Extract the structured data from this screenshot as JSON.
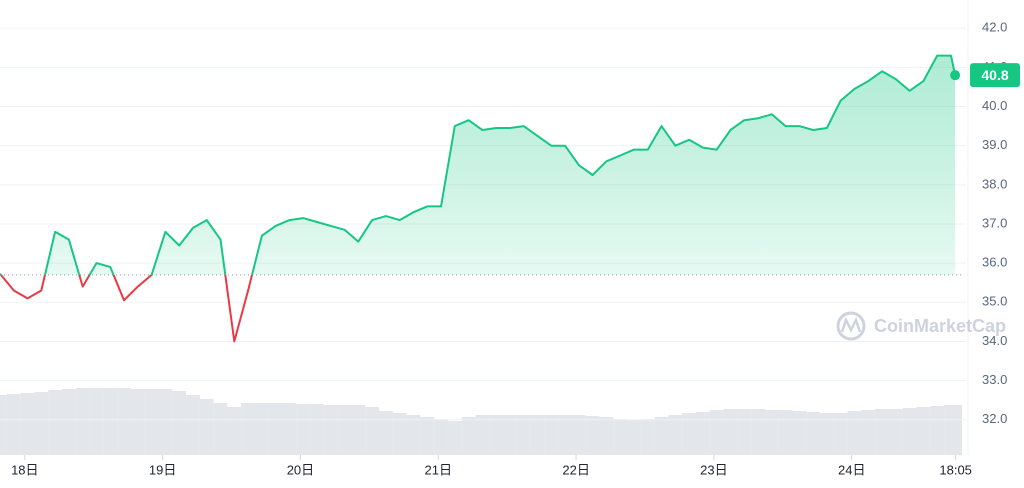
{
  "chart_data": {
    "type": "line",
    "x": [
      17.82,
      17.92,
      18.02,
      18.12,
      18.22,
      18.32,
      18.42,
      18.52,
      18.62,
      18.72,
      18.82,
      18.92,
      19.02,
      19.12,
      19.22,
      19.32,
      19.42,
      19.52,
      19.62,
      19.72,
      19.82,
      19.92,
      20.02,
      20.12,
      20.22,
      20.32,
      20.42,
      20.52,
      20.62,
      20.72,
      20.82,
      20.92,
      21.02,
      21.12,
      21.22,
      21.32,
      21.42,
      21.52,
      21.62,
      21.72,
      21.82,
      21.92,
      22.02,
      22.12,
      22.22,
      22.32,
      22.42,
      22.52,
      22.62,
      22.72,
      22.82,
      22.92,
      23.02,
      23.12,
      23.22,
      23.32,
      23.42,
      23.52,
      23.62,
      23.72,
      23.82,
      23.92,
      24.02,
      24.12,
      24.22,
      24.32,
      24.42,
      24.52,
      24.62,
      24.72,
      24.75
    ],
    "values": [
      35.73,
      35.3,
      35.1,
      35.3,
      36.8,
      36.6,
      35.4,
      36.0,
      35.9,
      35.05,
      35.4,
      35.7,
      36.8,
      36.45,
      36.9,
      37.1,
      36.6,
      34.0,
      35.3,
      36.7,
      36.95,
      37.1,
      37.15,
      37.05,
      36.95,
      36.85,
      36.55,
      37.1,
      37.2,
      37.1,
      37.3,
      37.45,
      37.45,
      39.5,
      39.65,
      39.4,
      39.45,
      39.45,
      39.5,
      39.25,
      39.0,
      39.0,
      38.5,
      38.25,
      38.6,
      38.75,
      38.9,
      38.9,
      39.5,
      39.0,
      39.15,
      38.95,
      38.9,
      39.4,
      39.65,
      39.7,
      39.8,
      39.5,
      39.5,
      39.4,
      39.45,
      40.15,
      40.45,
      40.65,
      40.9,
      40.7,
      40.4,
      40.65,
      41.3,
      41.3,
      40.8
    ],
    "last_label": "40.8",
    "volume": [
      60,
      61,
      62,
      63,
      65,
      66,
      67,
      67,
      67,
      67,
      66,
      66,
      66,
      64,
      60,
      56,
      52,
      48,
      52,
      52,
      52,
      52,
      51,
      51,
      50,
      50,
      50,
      48,
      44,
      42,
      40,
      38,
      36,
      34,
      38,
      40,
      40,
      40,
      40,
      40,
      40,
      40,
      40,
      39,
      38,
      36,
      35,
      36,
      38,
      40,
      42,
      43,
      45,
      46,
      46,
      46,
      45,
      45,
      44,
      43,
      42,
      42,
      44,
      45,
      46,
      46,
      47,
      48,
      49,
      50,
      50
    ],
    "baseline": 35.7,
    "up_color": "#16c784",
    "down_color": "#ea3943",
    "volume_color": "#e3e6ea",
    "xlim": [
      17.82,
      24.8
    ],
    "ylim": [
      31.1,
      42.72
    ],
    "xticks": [
      {
        "value": 18,
        "label": "18日"
      },
      {
        "value": 19,
        "label": "19日"
      },
      {
        "value": 20,
        "label": "20日"
      },
      {
        "value": 21,
        "label": "21日"
      },
      {
        "value": 22,
        "label": "22日"
      },
      {
        "value": 23,
        "label": "23日"
      },
      {
        "value": 24,
        "label": "24日"
      },
      {
        "value": 24.754,
        "label": "18:05"
      }
    ],
    "yticks": [
      {
        "value": 32,
        "label": "32.0"
      },
      {
        "value": 33,
        "label": "33.0"
      },
      {
        "value": 34,
        "label": "34.0"
      },
      {
        "value": 35,
        "label": "35.0"
      },
      {
        "value": 36,
        "label": "36.0"
      },
      {
        "value": 37,
        "label": "37.0"
      },
      {
        "value": 38,
        "label": "38.0"
      },
      {
        "value": 39,
        "label": "39.0"
      },
      {
        "value": 40,
        "label": "40.0"
      },
      {
        "value": 41,
        "label": "41.0"
      },
      {
        "value": 42,
        "label": "42.0"
      }
    ],
    "grid": true,
    "watermark": "CoinMarketCap"
  }
}
